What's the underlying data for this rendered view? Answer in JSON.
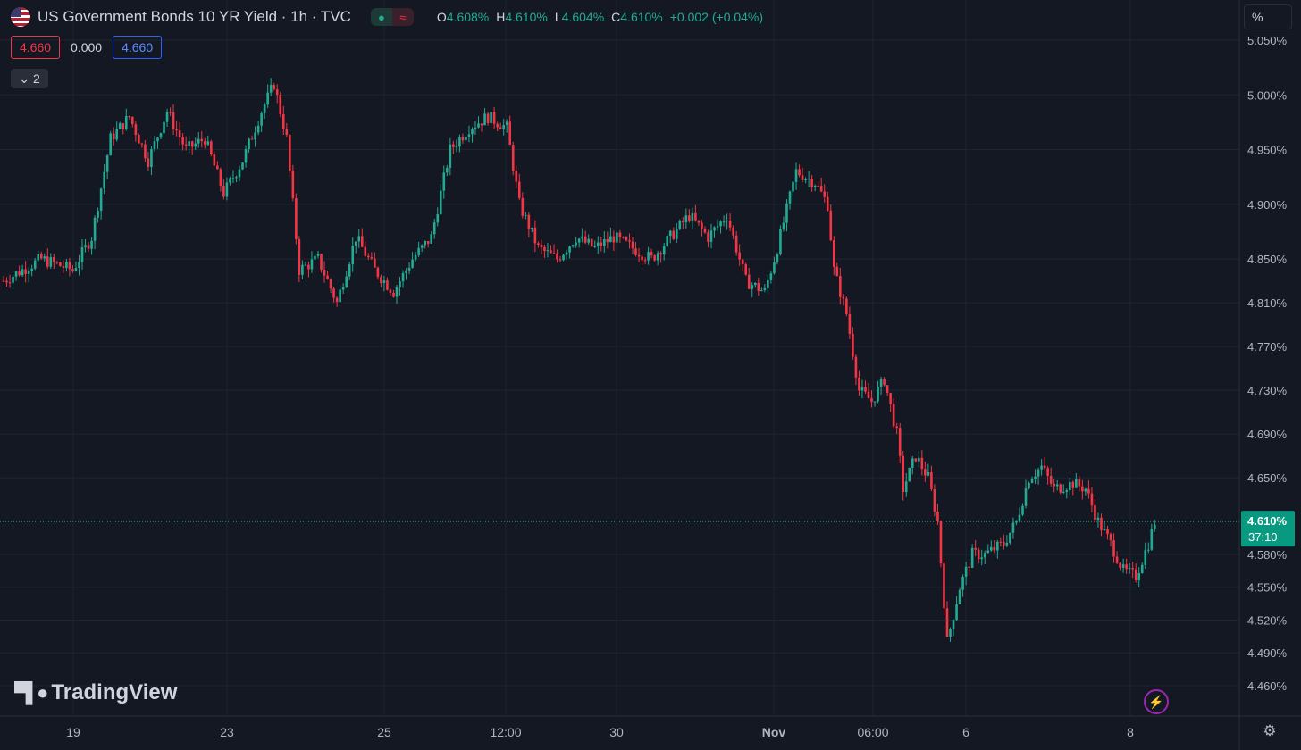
{
  "header": {
    "title": "US Government Bonds 10 YR Yield · 1h · TVC",
    "flag_icon": "us-flag-icon",
    "ohlc": [
      {
        "k": "O",
        "v": "4.608%"
      },
      {
        "k": "H",
        "v": "4.610%"
      },
      {
        "k": "L",
        "v": "4.604%"
      },
      {
        "k": "C",
        "v": "4.610%"
      }
    ],
    "change": "+0.002 (+0.04%)",
    "pill_wave": "≈"
  },
  "subrow": {
    "sell": "4.660",
    "spread": "0.000",
    "buy": "4.660"
  },
  "indicators_toggle": {
    "count": "2"
  },
  "scale_unit": "%",
  "logo_text": "TradingView",
  "last_price": {
    "value": "4.610%",
    "countdown": "37:10"
  },
  "colors": {
    "up": "#22ab94",
    "down": "#f23645",
    "bg": "#141823",
    "grid": "#1f2431",
    "text": "#b2b5be"
  },
  "chart_data": {
    "type": "candlestick",
    "y_ticks": [
      "4.460%",
      "4.490%",
      "4.520%",
      "4.550%",
      "4.580%",
      "4.650%",
      "4.690%",
      "4.730%",
      "4.770%",
      "4.810%",
      "4.850%",
      "4.900%",
      "4.950%",
      "5.000%",
      "5.050%"
    ],
    "x_ticks": [
      "19",
      "23",
      "25",
      "12:00",
      "30",
      "Nov",
      "06:00",
      "6",
      "8"
    ],
    "ylim": [
      4.45,
      5.055
    ],
    "anchors": [
      [
        0,
        4.83
      ],
      [
        12,
        4.85
      ],
      [
        22,
        4.84
      ],
      [
        28,
        4.87
      ],
      [
        34,
        4.96
      ],
      [
        40,
        4.98
      ],
      [
        46,
        4.94
      ],
      [
        52,
        4.985
      ],
      [
        58,
        4.95
      ],
      [
        64,
        4.96
      ],
      [
        70,
        4.91
      ],
      [
        76,
        4.94
      ],
      [
        82,
        4.985
      ],
      [
        86,
        5.01
      ],
      [
        90,
        4.96
      ],
      [
        94,
        4.84
      ],
      [
        100,
        4.85
      ],
      [
        106,
        4.81
      ],
      [
        112,
        4.87
      ],
      [
        118,
        4.84
      ],
      [
        124,
        4.82
      ],
      [
        130,
        4.85
      ],
      [
        136,
        4.87
      ],
      [
        142,
        4.95
      ],
      [
        148,
        4.97
      ],
      [
        154,
        4.98
      ],
      [
        160,
        4.97
      ],
      [
        164,
        4.9
      ],
      [
        170,
        4.86
      ],
      [
        176,
        4.85
      ],
      [
        182,
        4.87
      ],
      [
        188,
        4.86
      ],
      [
        194,
        4.87
      ],
      [
        200,
        4.86
      ],
      [
        206,
        4.85
      ],
      [
        212,
        4.87
      ],
      [
        218,
        4.89
      ],
      [
        224,
        4.87
      ],
      [
        230,
        4.89
      ],
      [
        236,
        4.83
      ],
      [
        242,
        4.82
      ],
      [
        246,
        4.86
      ],
      [
        252,
        4.93
      ],
      [
        258,
        4.92
      ],
      [
        262,
        4.9
      ],
      [
        264,
        4.84
      ],
      [
        268,
        4.8
      ],
      [
        272,
        4.73
      ],
      [
        276,
        4.72
      ],
      [
        280,
        4.74
      ],
      [
        284,
        4.69
      ],
      [
        286,
        4.64
      ],
      [
        290,
        4.67
      ],
      [
        294,
        4.65
      ],
      [
        297,
        4.61
      ],
      [
        300,
        4.5
      ],
      [
        304,
        4.55
      ],
      [
        308,
        4.58
      ],
      [
        312,
        4.58
      ],
      [
        318,
        4.59
      ],
      [
        322,
        4.61
      ],
      [
        326,
        4.65
      ],
      [
        330,
        4.66
      ],
      [
        334,
        4.64
      ],
      [
        340,
        4.645
      ],
      [
        344,
        4.64
      ],
      [
        348,
        4.61
      ],
      [
        352,
        4.59
      ],
      [
        356,
        4.565
      ],
      [
        360,
        4.56
      ],
      [
        364,
        4.59
      ],
      [
        366,
        4.61
      ]
    ]
  }
}
